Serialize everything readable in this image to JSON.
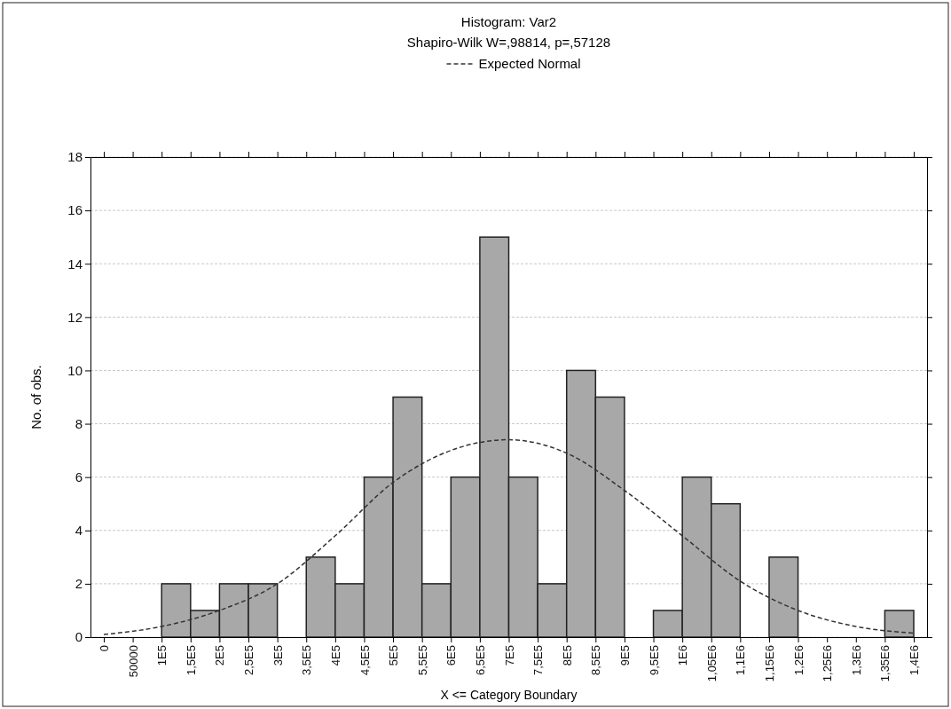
{
  "chart_data": {
    "type": "histogram",
    "title": "Histogram: Var2",
    "subtitle": "Shapiro-Wilk W=,98814, p=,57128",
    "xlabel": "X <= Category Boundary",
    "ylabel": "No. of obs.",
    "bins": [
      100000,
      150000,
      200000,
      250000,
      300000,
      350000,
      400000,
      450000,
      500000,
      550000,
      600000,
      650000,
      700000,
      750000,
      800000,
      850000,
      900000,
      950000,
      1000000,
      1050000,
      1100000,
      1150000,
      1200000,
      1250000,
      1300000,
      1350000,
      1400000
    ],
    "values": [
      2,
      1,
      2,
      2,
      0,
      3,
      2,
      6,
      9,
      2,
      6,
      15,
      6,
      2,
      10,
      9,
      0,
      1,
      6,
      5,
      0,
      3,
      0,
      0,
      0,
      1
    ],
    "color": "#a8a8a8",
    "series": [
      {
        "name": "Expected Normal",
        "type": "line",
        "color": "#333333",
        "line_style": "dashed",
        "x": [
          0,
          100000,
          200000,
          300000,
          400000,
          500000,
          600000,
          700000,
          800000,
          900000,
          1000000,
          1100000,
          1200000,
          1300000,
          1400000
        ],
        "values": [
          0.1,
          0.4,
          1,
          2,
          3.8,
          5.8,
          7,
          7.4,
          6.9,
          5.5,
          3.8,
          2.1,
          1,
          0.4,
          0.15
        ]
      }
    ],
    "xlim": [
      -23000,
      1423000
    ],
    "xticks": [
      0,
      50000,
      {
        "value": 100000,
        "label": "1E5"
      },
      {
        "value": 150000,
        "label": "1,5E5"
      },
      {
        "value": 200000,
        "label": "2E5"
      },
      {
        "value": 250000,
        "label": "2,5E5"
      },
      {
        "value": 300000,
        "label": "3E5"
      },
      {
        "value": 350000,
        "label": "3,5E5"
      },
      {
        "value": 400000,
        "label": "4E5"
      },
      {
        "value": 450000,
        "label": "4,5E5"
      },
      {
        "value": 500000,
        "label": "5E5"
      },
      {
        "value": 550000,
        "label": "5,5E5"
      },
      {
        "value": 600000,
        "label": "6E5"
      },
      {
        "value": 650000,
        "label": "6,5E5"
      },
      {
        "value": 700000,
        "label": "7E5"
      },
      {
        "value": 750000,
        "label": "7,5E5"
      },
      {
        "value": 800000,
        "label": "8E5"
      },
      {
        "value": 850000,
        "label": "8,5E5"
      },
      {
        "value": 900000,
        "label": "9E5"
      },
      {
        "value": 950000,
        "label": "9,5E5"
      },
      {
        "value": 1000000,
        "label": "1E6"
      },
      {
        "value": 1050000,
        "label": "1,05E6"
      },
      {
        "value": 1100000,
        "label": "1,1E6"
      },
      {
        "value": 1150000,
        "label": "1,15E6"
      },
      {
        "value": 1200000,
        "label": "1,2E6"
      },
      {
        "value": 1250000,
        "label": "1,25E6"
      },
      {
        "value": 1300000,
        "label": "1,3E6"
      },
      {
        "value": 1350000,
        "label": "1,35E6"
      },
      {
        "value": 1400000,
        "label": "1,4E6"
      }
    ],
    "ylim": [
      0,
      18
    ],
    "yticks": [
      0,
      2,
      4,
      6,
      8,
      10,
      12,
      14,
      16,
      18
    ],
    "grid": "y",
    "legend": "top"
  }
}
